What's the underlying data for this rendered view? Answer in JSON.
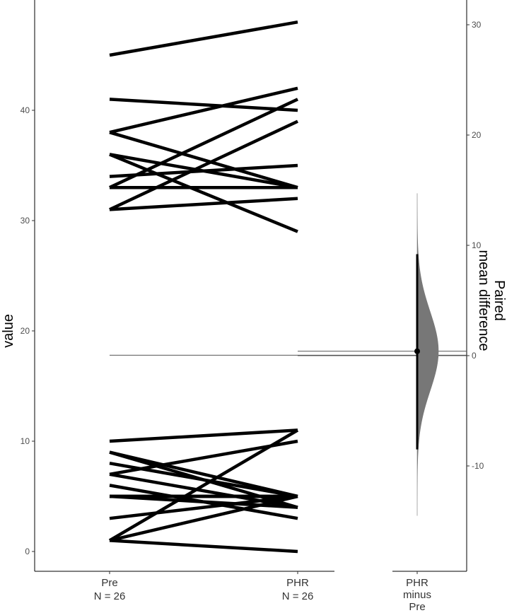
{
  "chart_data": {
    "type": "estimation-plot",
    "left_panel": {
      "type": "paired-slopegraph",
      "ylabel": "value",
      "ylim": [
        -2,
        50
      ],
      "yticks": [
        0,
        10,
        20,
        30,
        40
      ],
      "groups": [
        {
          "label": "Pre",
          "n_label": "N = 26"
        },
        {
          "label": "PHR",
          "n_label": "N = 26"
        }
      ],
      "pairs": [
        [
          45,
          48
        ],
        [
          41,
          40
        ],
        [
          38,
          42
        ],
        [
          38,
          33
        ],
        [
          36,
          33
        ],
        [
          36,
          29
        ],
        [
          34,
          35
        ],
        [
          33,
          41
        ],
        [
          33,
          33
        ],
        [
          31,
          39
        ],
        [
          31,
          32
        ],
        [
          10,
          11
        ],
        [
          9,
          4
        ],
        [
          8,
          5
        ],
        [
          7,
          10
        ],
        [
          7,
          4
        ],
        [
          6,
          3
        ],
        [
          5,
          5
        ],
        [
          5,
          5
        ],
        [
          5,
          4
        ],
        [
          3,
          5
        ],
        [
          1,
          11
        ],
        [
          1,
          5
        ],
        [
          1,
          0
        ],
        [
          9,
          5
        ],
        [
          5,
          5
        ]
      ],
      "reference_line": 17.8
    },
    "right_panel": {
      "type": "bootstrap-distribution",
      "ylabel": "Paired\nmean difference",
      "category_label": [
        "PHR",
        "minus",
        "Pre"
      ],
      "ylim": [
        -19.4,
        33.5
      ],
      "yticks": [
        -10,
        0,
        10,
        20,
        30
      ],
      "zero_line": 0,
      "mean_difference": 0.4,
      "ci": [
        -8.5,
        9.2
      ],
      "distribution_range": [
        -14.5,
        14.7
      ],
      "distribution_sd": 3.6,
      "fill_color": "#777777"
    }
  }
}
